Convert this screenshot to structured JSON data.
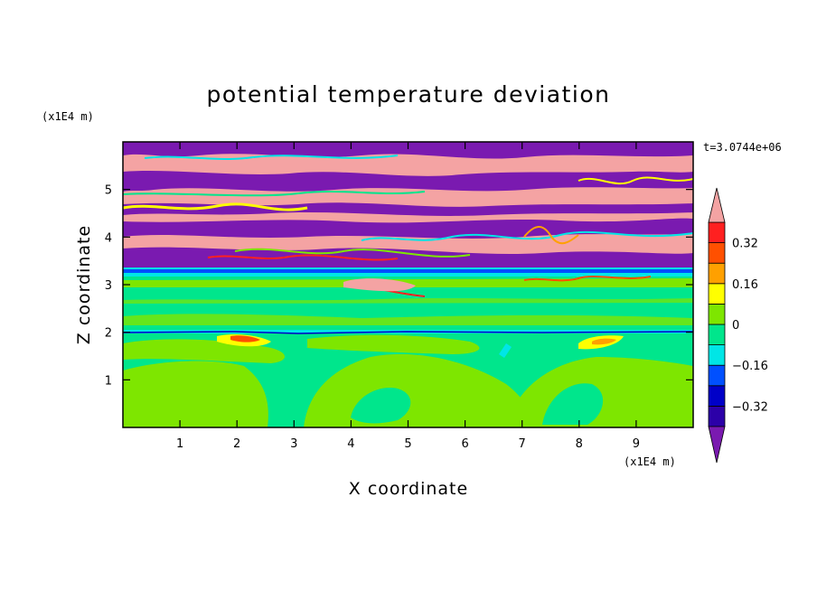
{
  "chart_data": {
    "type": "heatmap",
    "title": "potential temperature deviation",
    "xlabel": "X coordinate",
    "ylabel": "Z coordinate",
    "x_unit": "(x1E4 m)",
    "z_unit": "(x1E4 m)",
    "time_label": "t=3.0744e+06",
    "xlim": [
      0,
      10
    ],
    "ylim": [
      0,
      6
    ],
    "x_ticks": [
      "1",
      "2",
      "3",
      "4",
      "5",
      "6",
      "7",
      "8",
      "9"
    ],
    "y_ticks": [
      "1",
      "2",
      "3",
      "4",
      "5"
    ],
    "colorbar": {
      "levels": [
        -0.4,
        -0.32,
        -0.24,
        -0.16,
        -0.08,
        0,
        0.08,
        0.16,
        0.24,
        0.32,
        0.4
      ],
      "labels": [
        "0.32",
        "0.16",
        "0",
        "−0.16",
        "−0.32"
      ],
      "colors": [
        "#7a1ab0",
        "#2c00a8",
        "#0000c8",
        "#0050ff",
        "#00e6e6",
        "#00e68c",
        "#7ee600",
        "#ffff00",
        "#ffa000",
        "#ff5000",
        "#ff2020",
        "#f4a3a3"
      ],
      "extend": "both"
    },
    "layers": [
      {
        "z_range": [
          0,
          1.9
        ],
        "description_value": 0.04,
        "note": "mix of 0 to 0.08"
      },
      {
        "z_range": [
          2.0,
          3.15
        ],
        "value": 0.02
      },
      {
        "z_range": [
          3.2,
          6.0
        ],
        "pattern": "alternating +0.4 and -0.4 bands"
      }
    ]
  }
}
